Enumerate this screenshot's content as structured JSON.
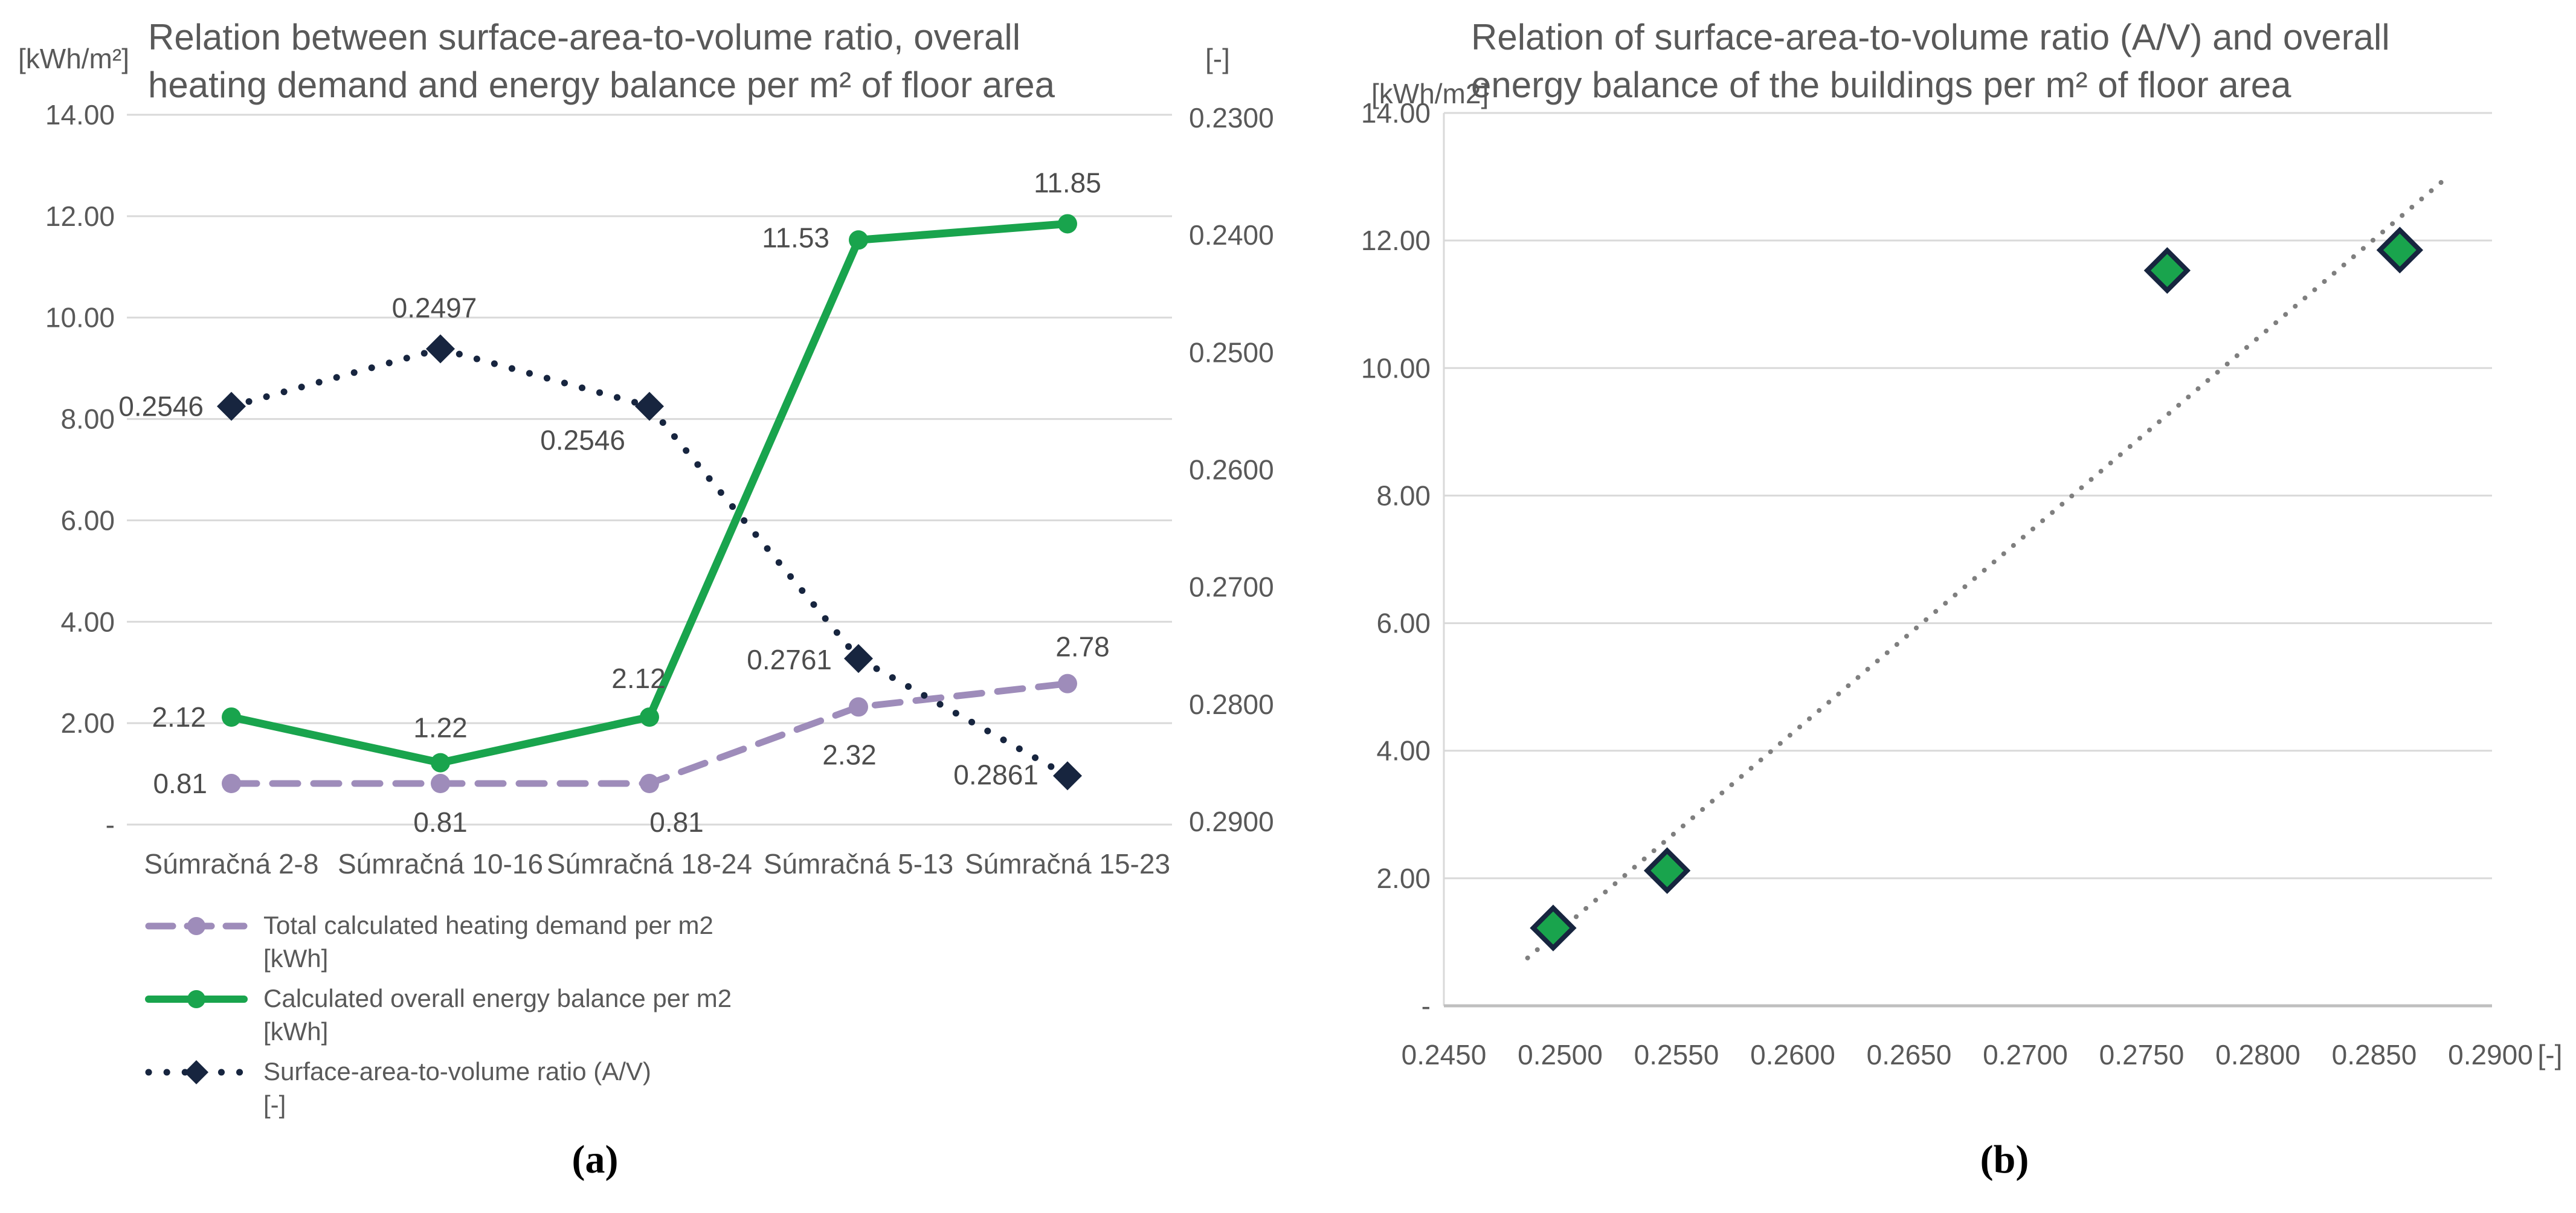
{
  "captions": {
    "a": "(a)",
    "b": "(b)"
  },
  "theme": {
    "background": "#ffffff",
    "grid": "#d9d9d9",
    "axis_text": "#595959",
    "data_label": "#4d4d4d",
    "green": "#19a44d",
    "purple": "#9e8cba",
    "navy": "#17253f",
    "trendline_gray": "#7f7f7f",
    "axis_line": "#bfbfbf"
  },
  "chart_data": [
    {
      "id": "a",
      "type": "line",
      "title": "Relation between surface-area-to-volume ratio, overall heating demand and energy balance per m² of floor area",
      "title_lines": [
        "Relation between surface-area-to-volume ratio, overall",
        "heating demand and energy balance per m² of floor area"
      ],
      "left_axis": {
        "unit": "[kWh/m²]",
        "min": 0,
        "max": 14,
        "step": 2,
        "tick_labels": [
          "14.00",
          "12.00",
          "10.00",
          "8.00",
          "6.00",
          "4.00",
          "2.00",
          "-"
        ]
      },
      "right_axis": {
        "unit": "[-]",
        "min": 0.23,
        "max": 0.29,
        "step": 0.01,
        "tick_labels": [
          "0.2300",
          "0.2400",
          "0.2500",
          "0.2600",
          "0.2700",
          "0.2800",
          "0.2900"
        ],
        "inverted": true
      },
      "categories": [
        "Súmračná 2-8",
        "Súmračná 10-16",
        "Súmračná 18-24",
        "Súmračná 5-13",
        "Súmračná 15-23"
      ],
      "grid": true,
      "legend_position": "bottom-left",
      "series": [
        {
          "slug": "heating-demand",
          "name": "Total calculated heating demand per m2 [kWh]",
          "legend_lines": [
            "Total calculated heating demand per m2",
            "[kWh]"
          ],
          "axis": "left",
          "color": "#9e8cba",
          "style": "dashed",
          "marker": "circle",
          "values": [
            0.81,
            0.81,
            0.81,
            2.32,
            2.78
          ],
          "labels": [
            "0.81",
            "0.81",
            "0.81",
            "2.32",
            "2.78"
          ]
        },
        {
          "slug": "energy-balance",
          "name": "Calculated overall energy balance per m2 [kWh]",
          "legend_lines": [
            "Calculated overall energy balance per m2",
            "[kWh]"
          ],
          "axis": "left",
          "color": "#19a44d",
          "style": "solid",
          "marker": "circle",
          "values": [
            2.12,
            1.22,
            2.12,
            11.53,
            11.85
          ],
          "labels": [
            "2.12",
            "1.22",
            "2.12",
            "11.53",
            "11.85"
          ]
        },
        {
          "slug": "av-ratio",
          "name": "Surface-area-to-volume ratio (A/V) [-]",
          "legend_lines": [
            "Surface-area-to-volume ratio (A/V)",
            "[-]"
          ],
          "axis": "right",
          "color": "#17253f",
          "style": "dotted",
          "marker": "diamond",
          "values": [
            0.2546,
            0.2497,
            0.2546,
            0.2761,
            0.2861
          ],
          "labels": [
            "0.2546",
            "0.2497",
            "0.2546",
            "0.2761",
            "0.2861"
          ]
        }
      ]
    },
    {
      "id": "b",
      "type": "scatter",
      "title": "Relation of surface-area-to-volume ratio (A/V) and overall energy balance of the buildings per m² of floor area",
      "title_lines": [
        "Relation of surface-area-to-volume ratio (A/V) and overall",
        "energy balance of the buildings per m² of floor area"
      ],
      "y_axis": {
        "unit": "[kWh/m2]",
        "min": 0,
        "max": 14,
        "step": 2,
        "tick_labels": [
          "14.00",
          "12.00",
          "10.00",
          "8.00",
          "6.00",
          "4.00",
          "2.00",
          "-"
        ]
      },
      "x_axis": {
        "unit": "[-]",
        "min": 0.245,
        "max": 0.29,
        "step": 0.005,
        "tick_labels": [
          "0.2450",
          "0.2500",
          "0.2550",
          "0.2600",
          "0.2650",
          "0.2700",
          "0.2750",
          "0.2800",
          "0.2850",
          "0.2900"
        ]
      },
      "grid": true,
      "marker": {
        "shape": "diamond",
        "fill": "#19a44d",
        "stroke": "#17253f"
      },
      "points": [
        {
          "x": 0.2497,
          "y": 1.22
        },
        {
          "x": 0.2546,
          "y": 2.12
        },
        {
          "x": 0.2761,
          "y": 11.53
        },
        {
          "x": 0.2861,
          "y": 11.85
        }
      ],
      "trendline": {
        "style": "dotted",
        "color": "#7f7f7f",
        "x1": 0.2486,
        "y1": 0.75,
        "x2": 0.288,
        "y2": 12.95
      }
    }
  ]
}
